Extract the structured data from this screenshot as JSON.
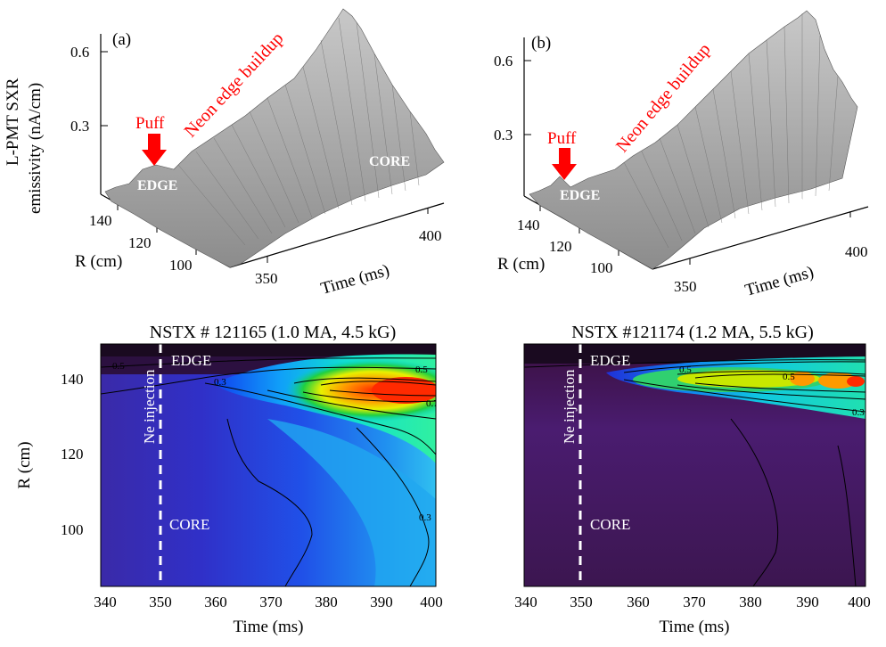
{
  "figure": {
    "panel_a": {
      "label": "(a)",
      "ylabel_line1": "L-PMT SXR",
      "ylabel_line2": "emissivity (nA/cm)",
      "z_ticks": [
        "0.6",
        "0.3"
      ],
      "r_ticks": [
        "140",
        "120",
        "100"
      ],
      "r_label": "R (cm)",
      "time_ticks": [
        "350",
        "400"
      ],
      "time_label": "Time (ms)",
      "puff_label": "Puff",
      "buildup_label": "Neon edge buildup",
      "edge_label": "EDGE",
      "core_label": "CORE"
    },
    "panel_b": {
      "label": "(b)",
      "z_ticks": [
        "0.6",
        "0.3"
      ],
      "r_ticks": [
        "140",
        "120",
        "100"
      ],
      "r_label": "R (cm)",
      "time_ticks": [
        "350",
        "400"
      ],
      "time_label": "Time (ms)",
      "puff_label": "Puff",
      "buildup_label": "Neon edge buildup",
      "edge_label": "EDGE",
      "core_label": "CORE"
    },
    "panel_c": {
      "title": "NSTX # 121165 (1.0 MA, 4.5 kG)",
      "ylabel": "R (cm)",
      "y_ticks": [
        "140",
        "120",
        "100"
      ],
      "x_ticks": [
        "340",
        "350",
        "360",
        "370",
        "380",
        "390",
        "400"
      ],
      "xlabel": "Time (ms)",
      "injection_label": "Ne injection",
      "edge_label": "EDGE",
      "core_label": "CORE",
      "contour_labels": [
        "0.5",
        "0.3",
        "0.5",
        "0.7",
        "0.3"
      ]
    },
    "panel_d": {
      "title": "NSTX #121174 (1.2 MA, 5.5 kG)",
      "x_ticks": [
        "340",
        "350",
        "360",
        "370",
        "380",
        "390",
        "400"
      ],
      "xlabel": "Time (ms)",
      "injection_label": "Ne injection",
      "edge_label": "EDGE",
      "core_label": "CORE",
      "contour_labels": [
        "0.5",
        "0.5",
        "0.3"
      ]
    },
    "colors": {
      "annotation_red": "#ff0000",
      "surface_gray": "#a8a8a8",
      "dashed_line": "#ffffff"
    }
  }
}
